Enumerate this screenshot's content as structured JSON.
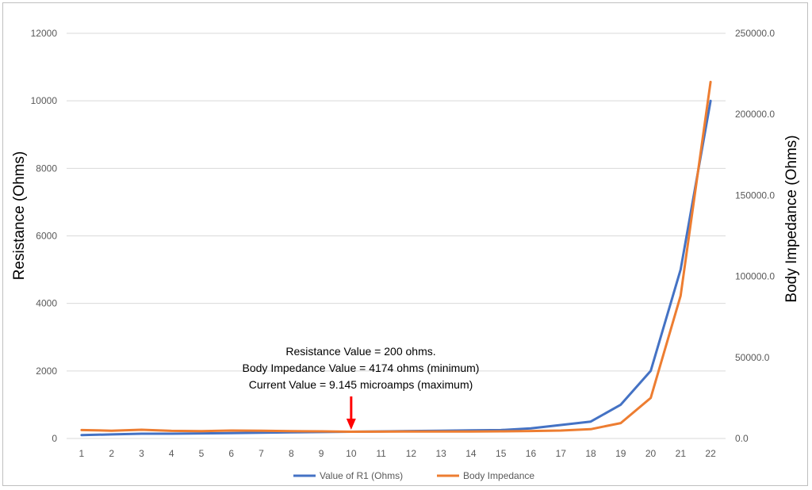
{
  "chart_data": {
    "type": "line",
    "categories": [
      "1",
      "2",
      "3",
      "4",
      "5",
      "6",
      "7",
      "8",
      "9",
      "10",
      "11",
      "12",
      "13",
      "14",
      "15",
      "16",
      "17",
      "18",
      "19",
      "20",
      "21",
      "22"
    ],
    "series": [
      {
        "name": "Value of R1 (Ohms)",
        "axis": "left",
        "color": "#4472c4",
        "values": [
          100,
          120,
          140,
          140,
          150,
          160,
          170,
          180,
          190,
          200,
          210,
          220,
          230,
          240,
          250,
          300,
          400,
          500,
          1000,
          2000,
          5000,
          10000
        ]
      },
      {
        "name": "Body Impedance",
        "axis": "right",
        "color": "#ed7d31",
        "values": [
          5200,
          4800,
          5400,
          4700,
          4500,
          4900,
          4800,
          4500,
          4400,
          4174,
          4200,
          4300,
          4300,
          4300,
          4400,
          4600,
          4900,
          5700,
          9500,
          25000,
          88000,
          220000
        ]
      }
    ],
    "ylabel": "Resistance (Ohms)",
    "ylim": [
      0,
      12000
    ],
    "yticks": [
      "0",
      "2000",
      "4000",
      "6000",
      "8000",
      "10000",
      "12000"
    ],
    "y2label": "Body Impedance (Ohms)",
    "y2lim": [
      0,
      250000
    ],
    "y2ticks": [
      "0.0",
      "50000.0",
      "100000.0",
      "150000.0",
      "200000.0",
      "250000.0"
    ],
    "grid": true,
    "legend_position": "bottom",
    "annotation": {
      "lines": [
        "Resistance Value = 200 ohms.",
        "Body Impedance Value = 4174 ohms (minimum)",
        "Current Value = 9.145 microamps (maximum)"
      ],
      "arrow_at_category": "10",
      "arrow_color": "#ff0000"
    }
  }
}
